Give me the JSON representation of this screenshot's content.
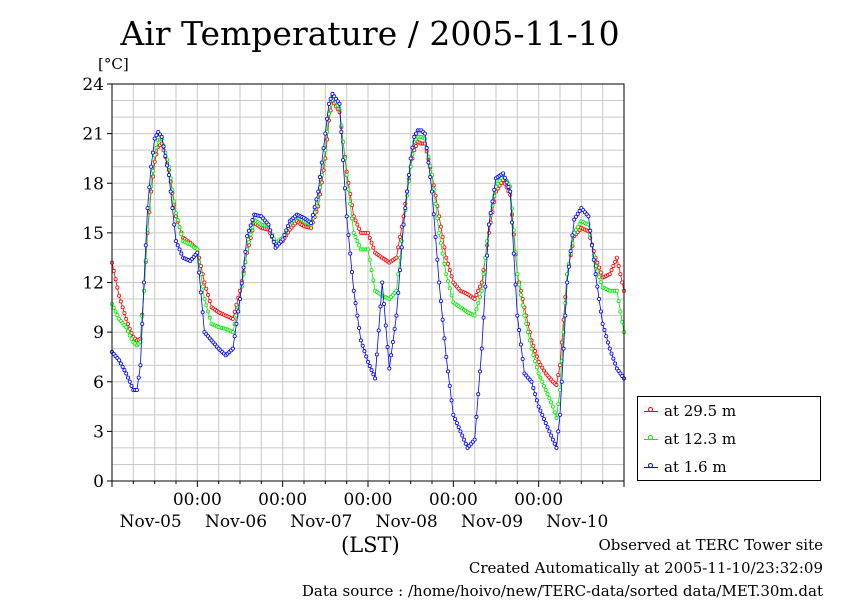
{
  "title": "Air Temperature / 2005-11-10",
  "unit_label": "[°C]",
  "x_axis_label": "(LST)",
  "footer": {
    "line1": "Observed at TERC Tower site",
    "line2": "Created Automatically at 2005-11-10/23:32:09",
    "line3": "Data source : /home/hoivo/new/TERC-data/sorted data/MET.30m.dat"
  },
  "chart_data": {
    "type": "line",
    "title": "Air Temperature / 2005-11-10",
    "ylabel": "[°C]",
    "xlabel": "(LST)",
    "ylim": [
      0,
      24
    ],
    "yticks": [
      0,
      3,
      6,
      9,
      12,
      15,
      18,
      21,
      24
    ],
    "xlim_hours": [
      0,
      144
    ],
    "x_unit": "hours from 2005-11-05 00:00 LST",
    "x_tick_time_labels": [
      "00:00",
      "00:00",
      "00:00",
      "00:00",
      "00:00"
    ],
    "x_tick_date_labels": [
      "Nov-05",
      "Nov-06",
      "Nov-07",
      "Nov-08",
      "Nov-09",
      "Nov-10"
    ],
    "grid": true,
    "legend_position": "right-bottom",
    "series": [
      {
        "name": "at 29.5 m",
        "color": "#ff0000",
        "x": [
          0,
          2,
          4,
          5,
          6,
          7,
          8,
          9,
          10,
          11,
          12,
          13,
          14,
          16,
          18,
          20,
          22,
          24,
          26,
          28,
          30,
          32,
          34,
          36,
          38,
          40,
          42,
          44,
          46,
          48,
          50,
          52,
          54,
          56,
          58,
          60,
          61,
          62,
          64,
          66,
          68,
          70,
          72,
          74,
          76,
          78,
          80,
          82,
          84,
          85,
          86,
          87,
          88,
          90,
          92,
          94,
          96,
          98,
          100,
          102,
          104,
          106,
          108,
          110,
          112,
          114,
          116,
          118,
          120,
          122,
          124,
          125,
          126,
          128,
          130,
          132,
          134,
          136,
          138,
          140,
          142,
          144
        ],
        "values": [
          13.2,
          11.2,
          9.8,
          9.2,
          8.7,
          8.5,
          8.6,
          11.5,
          15.0,
          17.5,
          19.3,
          20.2,
          20.4,
          18.8,
          16.0,
          14.7,
          14.4,
          14.0,
          12.0,
          10.5,
          10.2,
          10.0,
          9.8,
          11.5,
          13.8,
          15.6,
          15.3,
          15.2,
          14.3,
          14.5,
          15.2,
          15.7,
          15.4,
          15.3,
          16.6,
          19.5,
          21.8,
          23.0,
          22.3,
          18.7,
          16.0,
          15.0,
          15.0,
          13.8,
          13.5,
          13.2,
          13.5,
          16.0,
          19.0,
          20.0,
          20.5,
          20.4,
          20.4,
          18.5,
          16.0,
          13.5,
          12.0,
          11.5,
          11.3,
          11.0,
          12.0,
          15.0,
          17.5,
          18.2,
          17.3,
          12.5,
          10.5,
          8.5,
          7.2,
          6.5,
          6.0,
          5.8,
          7.0,
          12.5,
          14.8,
          15.3,
          15.1,
          13.5,
          12.3,
          12.5,
          13.5,
          11.5
        ]
      },
      {
        "name": "at 12.3 m",
        "color": "#00ee00",
        "x": [
          0,
          2,
          4,
          5,
          6,
          7,
          8,
          9,
          10,
          11,
          12,
          13,
          14,
          16,
          18,
          20,
          22,
          24,
          26,
          28,
          30,
          32,
          34,
          36,
          38,
          40,
          42,
          44,
          46,
          48,
          50,
          52,
          54,
          56,
          58,
          60,
          61,
          62,
          64,
          66,
          68,
          70,
          72,
          74,
          76,
          78,
          80,
          82,
          84,
          85,
          86,
          87,
          88,
          90,
          92,
          94,
          96,
          98,
          100,
          102,
          104,
          106,
          108,
          110,
          112,
          114,
          116,
          118,
          120,
          122,
          124,
          125,
          126,
          128,
          130,
          132,
          134,
          136,
          138,
          140,
          142,
          144
        ],
        "values": [
          10.7,
          9.8,
          9.3,
          8.8,
          8.4,
          8.2,
          8.4,
          11.5,
          15.2,
          17.8,
          19.7,
          20.6,
          20.7,
          19.0,
          16.2,
          14.5,
          14.3,
          14.0,
          11.0,
          9.5,
          9.3,
          9.2,
          9.0,
          11.0,
          14.0,
          15.8,
          15.5,
          15.4,
          14.4,
          14.7,
          15.5,
          16.0,
          15.7,
          15.5,
          17.0,
          20.0,
          22.2,
          23.3,
          22.5,
          18.5,
          15.0,
          14.0,
          14.0,
          11.5,
          11.2,
          11.0,
          11.5,
          15.5,
          19.0,
          20.5,
          20.8,
          20.8,
          20.7,
          18.5,
          15.0,
          12.5,
          10.8,
          10.5,
          10.2,
          10.0,
          11.5,
          15.5,
          17.8,
          18.5,
          17.8,
          12.5,
          10.0,
          8.0,
          6.5,
          5.5,
          4.5,
          3.8,
          5.5,
          12.5,
          15.0,
          15.7,
          15.5,
          13.0,
          11.7,
          11.5,
          11.5,
          9.0
        ]
      },
      {
        "name": "at 1.6 m",
        "color": "#0000ff",
        "x": [
          0,
          2,
          4,
          5,
          6,
          7,
          8,
          9,
          10,
          11,
          12,
          13,
          14,
          16,
          18,
          20,
          22,
          24,
          26,
          28,
          30,
          32,
          34,
          36,
          38,
          40,
          42,
          44,
          46,
          48,
          50,
          52,
          54,
          56,
          58,
          60,
          61,
          62,
          64,
          66,
          68,
          70,
          72,
          74,
          76,
          78,
          80,
          82,
          84,
          85,
          86,
          87,
          88,
          90,
          92,
          94,
          96,
          98,
          100,
          102,
          104,
          106,
          108,
          110,
          112,
          114,
          116,
          118,
          120,
          122,
          124,
          125,
          126,
          128,
          130,
          132,
          134,
          136,
          138,
          140,
          142,
          144
        ],
        "values": [
          7.8,
          7.3,
          6.5,
          6.0,
          5.5,
          5.5,
          7.0,
          12.0,
          16.5,
          19.0,
          20.7,
          21.1,
          20.8,
          18.5,
          14.5,
          13.5,
          13.3,
          13.8,
          9.0,
          8.5,
          8.0,
          7.6,
          8.0,
          11.0,
          14.8,
          16.1,
          16.0,
          15.5,
          14.1,
          14.6,
          15.7,
          16.1,
          15.9,
          15.6,
          17.5,
          21.0,
          22.8,
          23.4,
          22.8,
          16.0,
          11.5,
          8.5,
          7.2,
          6.2,
          12.0,
          6.8,
          10.0,
          15.5,
          19.5,
          20.8,
          21.2,
          21.2,
          21.0,
          17.5,
          12.0,
          7.5,
          4.0,
          3.0,
          2.0,
          2.5,
          8.0,
          15.5,
          18.3,
          18.6,
          17.5,
          10.0,
          6.5,
          6.0,
          4.5,
          3.5,
          2.5,
          2.0,
          4.0,
          12.0,
          15.8,
          16.5,
          16.0,
          12.5,
          9.5,
          8.0,
          6.8,
          6.2
        ]
      }
    ]
  }
}
